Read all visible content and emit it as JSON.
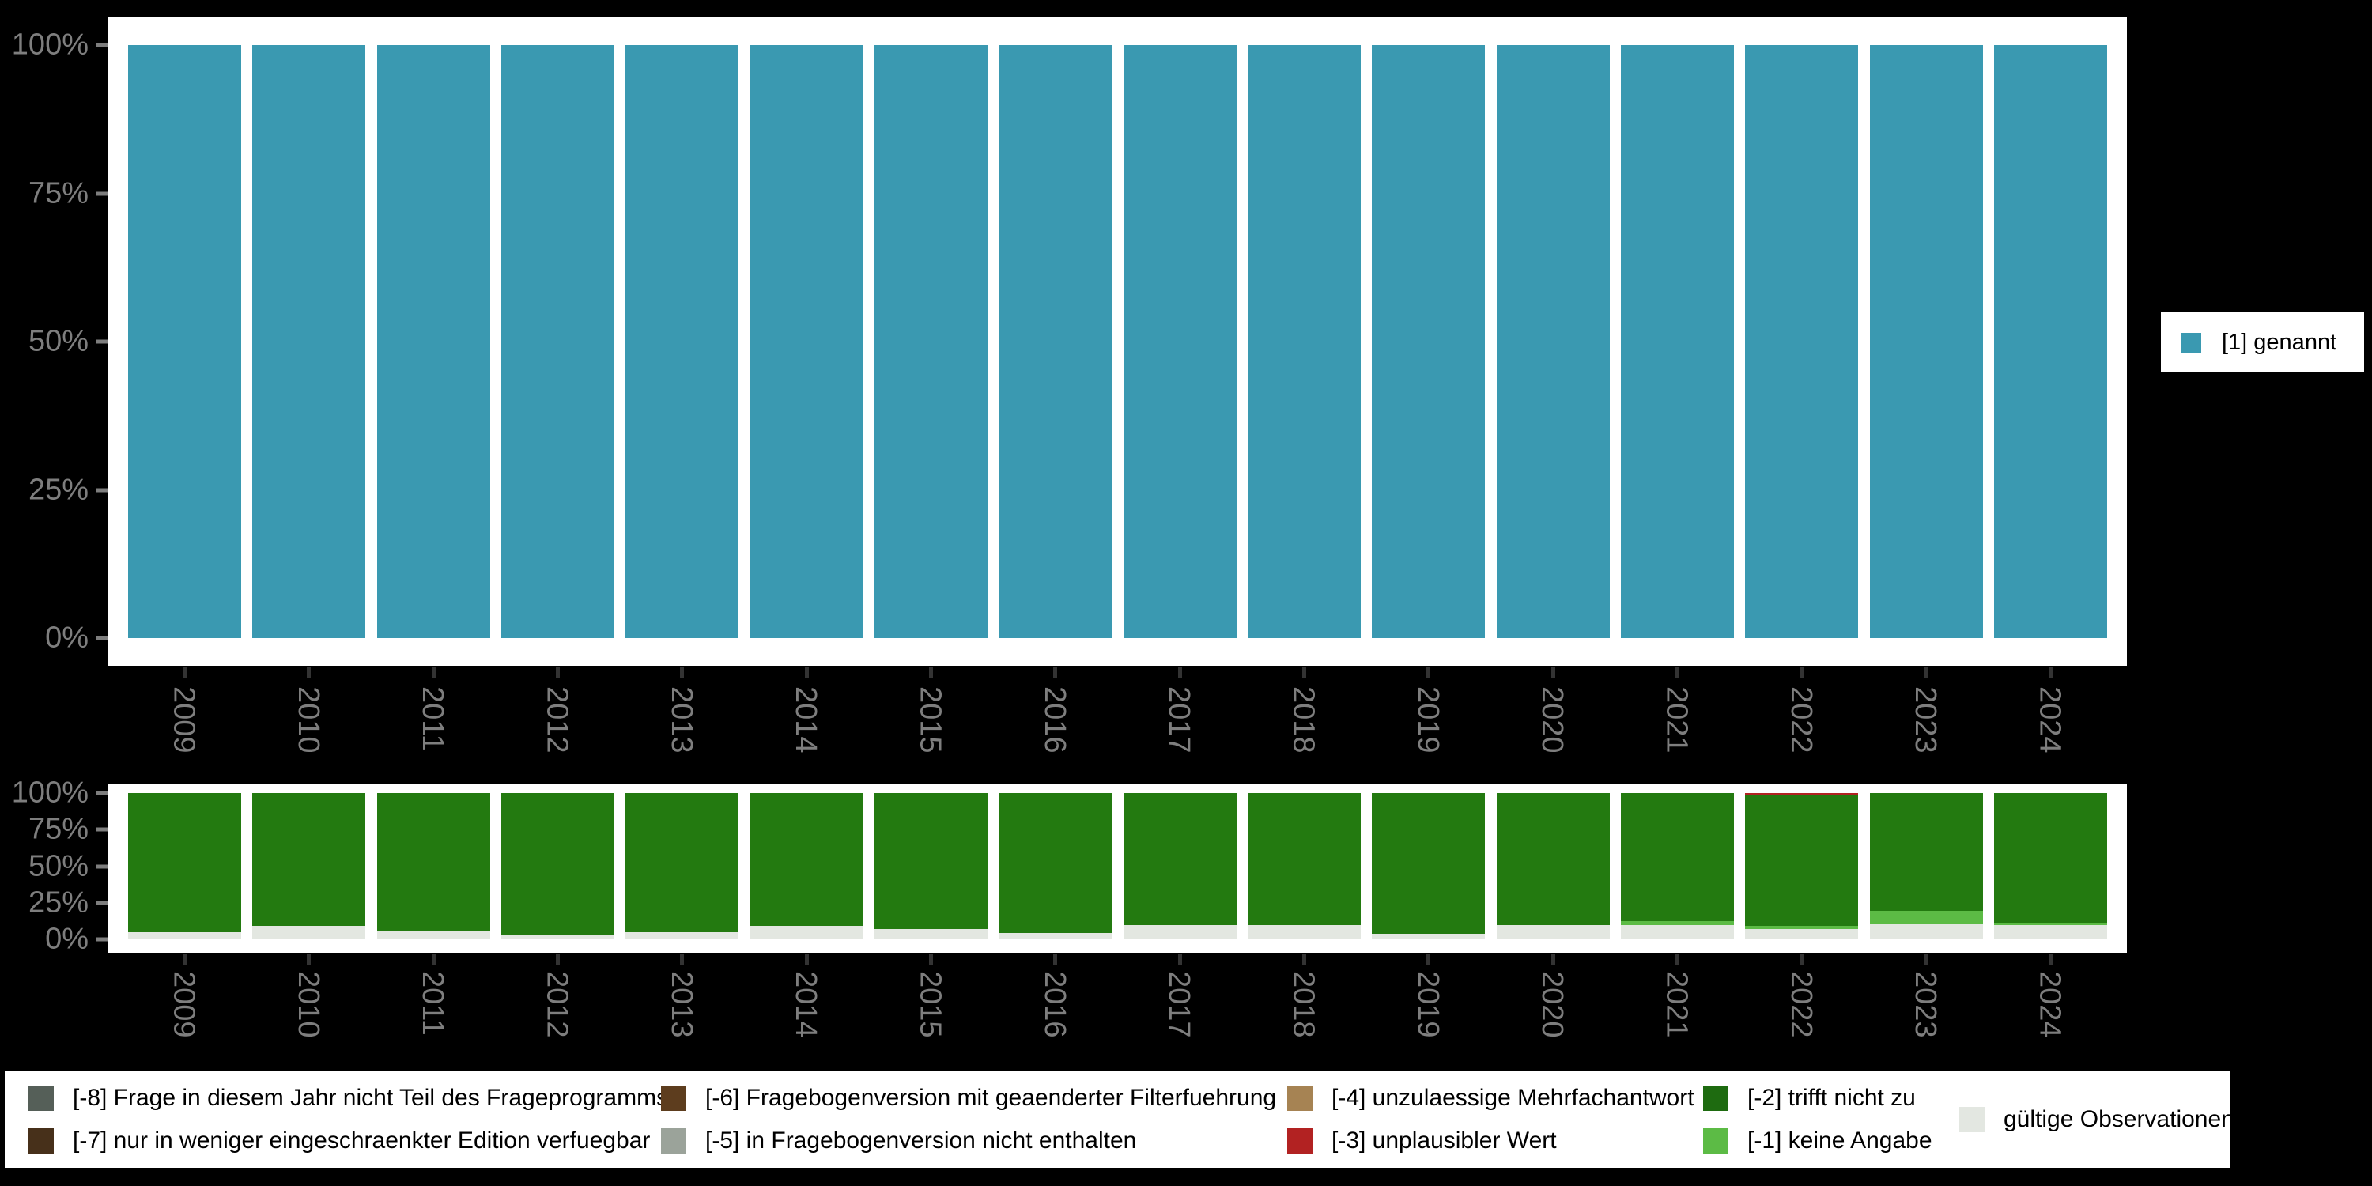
{
  "right_legend": {
    "label": "[1] genannt",
    "color": "#3a99b1"
  },
  "bottom_legend": {
    "columns": [
      [
        {
          "label": "[-8] Frage in diesem Jahr nicht Teil des Frageprogramms",
          "color": "#555f58"
        },
        {
          "label": "[-7] nur in weniger eingeschraenkter Edition verfuegbar",
          "color": "#47301a"
        }
      ],
      [
        {
          "label": "[-6] Fragebogenversion mit geaenderter Filterfuehrung",
          "color": "#5d3d1e"
        },
        {
          "label": "[-5] in Fragebogenversion nicht enthalten",
          "color": "#9ba39a"
        }
      ],
      [
        {
          "label": "[-4] unzulaessige Mehrfachantwort",
          "color": "#a68353"
        },
        {
          "label": "[-3] unplausibler Wert",
          "color": "#b22222"
        }
      ],
      [
        {
          "label": "[-2] trifft nicht zu",
          "color": "#1e6b10"
        },
        {
          "label": "[-1] keine Angabe",
          "color": "#5cbb45"
        }
      ],
      [
        {
          "label": "gültige Observationen",
          "color": "#e3e7e1"
        }
      ]
    ]
  },
  "chart_data": [
    {
      "id": "mentioned",
      "type": "bar",
      "stacked": true,
      "title": "",
      "xlabel": "",
      "ylabel": "",
      "ylim": [
        0,
        100
      ],
      "grid": false,
      "legend_position": "right",
      "y_tick_labels": [
        "0%",
        "25%",
        "50%",
        "75%",
        "100%"
      ],
      "categories": [
        "2009",
        "2010",
        "2011",
        "2012",
        "2013",
        "2014",
        "2015",
        "2016",
        "2017",
        "2018",
        "2019",
        "2020",
        "2021",
        "2022",
        "2023",
        "2024"
      ],
      "series": [
        {
          "name": "[1] genannt",
          "color": "#3a99b1",
          "values": [
            100,
            100,
            100,
            100,
            100,
            100,
            100,
            100,
            100,
            100,
            100,
            100,
            100,
            100,
            100,
            100
          ]
        }
      ]
    },
    {
      "id": "missings",
      "type": "bar",
      "stacked": true,
      "title": "",
      "xlabel": "",
      "ylabel": "",
      "ylim": [
        0,
        100
      ],
      "grid": false,
      "legend_position": "bottom",
      "y_tick_labels": [
        "0%",
        "25%",
        "50%",
        "75%",
        "100%"
      ],
      "categories": [
        "2009",
        "2010",
        "2011",
        "2012",
        "2013",
        "2014",
        "2015",
        "2016",
        "2017",
        "2018",
        "2019",
        "2020",
        "2021",
        "2022",
        "2023",
        "2024"
      ],
      "series": [
        {
          "name": "gültige Observationen",
          "color": "#e3e7e1",
          "values": [
            5,
            9,
            5.5,
            3,
            5,
            9,
            7,
            4.5,
            9.5,
            10,
            4,
            10,
            9.5,
            7,
            10.5,
            9.5
          ]
        },
        {
          "name": "[-1] keine Angabe",
          "color": "#5cbb45",
          "values": [
            0,
            0,
            0,
            0,
            0,
            0,
            0,
            0,
            0,
            0,
            0,
            0,
            3,
            2,
            9,
            2
          ]
        },
        {
          "name": "[-2] trifft nicht zu",
          "color": "#237a10",
          "values": [
            95,
            91,
            94.5,
            97,
            95,
            91,
            93,
            95.5,
            90.5,
            90,
            96,
            90,
            87.5,
            90,
            80.5,
            88.5
          ]
        },
        {
          "name": "[-3] unplausibler Wert",
          "color": "#b22222",
          "values": [
            0,
            0,
            0,
            0,
            0,
            0,
            0,
            0,
            0,
            0,
            0,
            0,
            0,
            1,
            0,
            0
          ]
        }
      ]
    }
  ]
}
